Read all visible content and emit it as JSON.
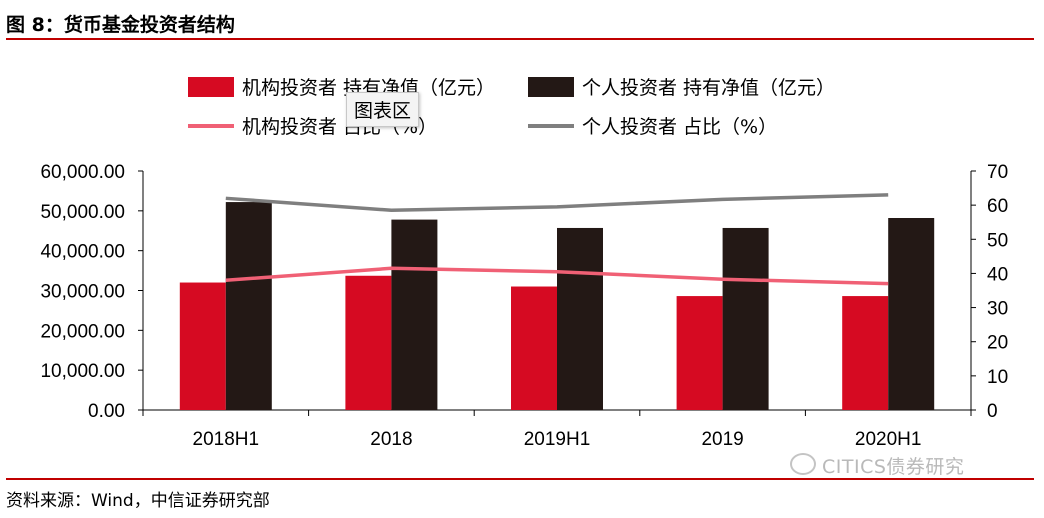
{
  "figure_title": "图 8：货币基金投资者结构",
  "source_text": "资料来源：Wind，中信证券研究部",
  "watermark_text": "CITICS债券研究",
  "tooltip_text": "图表区",
  "colors": {
    "institutional_bar": "#d60a22",
    "individual_bar": "#231815",
    "institutional_line": "#f06075",
    "individual_line": "#7f7f7f",
    "rule": "#c00000"
  },
  "chart_data": {
    "type": "bar",
    "title": "",
    "categories": [
      "2018H1",
      "2018",
      "2019H1",
      "2019",
      "2020H1"
    ],
    "series": [
      {
        "name": "机构投资者 持有净值（亿元）",
        "kind": "bar",
        "axis": "left",
        "values": [
          32000,
          33700,
          31000,
          28600,
          28600
        ]
      },
      {
        "name": "个人投资者 持有净值（亿元）",
        "kind": "bar",
        "axis": "left",
        "values": [
          52200,
          47800,
          45700,
          45700,
          48200
        ]
      },
      {
        "name": "机构投资者 占比（%）",
        "kind": "line",
        "axis": "right",
        "values": [
          38,
          41.5,
          40.5,
          38.3,
          37
        ]
      },
      {
        "name": "个人投资者 占比（%）",
        "kind": "line",
        "axis": "right",
        "values": [
          62,
          58.5,
          59.5,
          61.7,
          63
        ]
      }
    ],
    "left_axis": {
      "min": 0,
      "max": 60000,
      "ticks": [
        "0.00",
        "10,000.00",
        "20,000.00",
        "30,000.00",
        "40,000.00",
        "50,000.00",
        "60,000.00"
      ]
    },
    "right_axis": {
      "min": 0,
      "max": 70,
      "ticks": [
        "0",
        "10",
        "20",
        "30",
        "40",
        "50",
        "60",
        "70"
      ]
    },
    "grid": false,
    "legend_position": "top"
  }
}
